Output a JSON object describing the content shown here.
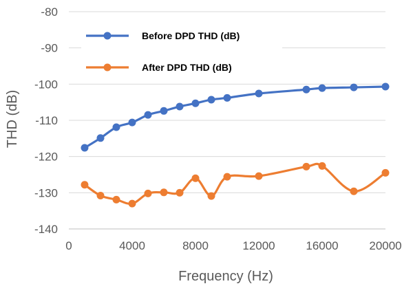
{
  "chart_data": {
    "type": "line",
    "xlabel": "Frequency (Hz)",
    "ylabel": "THD (dB)",
    "xlim": [
      0,
      20000
    ],
    "ylim": [
      -140,
      -80
    ],
    "xticks": [
      0,
      4000,
      8000,
      12000,
      16000,
      20000
    ],
    "yticks": [
      -140,
      -130,
      -120,
      -110,
      -100,
      -90,
      -80
    ],
    "grid": "horizontal",
    "legend_position": "top-left inside",
    "series": [
      {
        "name": "Before DPD THD (dB)",
        "color": "#4472C4",
        "x": [
          1000,
          2000,
          3000,
          4000,
          5000,
          6000,
          7000,
          8000,
          9000,
          10000,
          12000,
          15000,
          16000,
          18000,
          20000
        ],
        "y": [
          -117.6,
          -114.9,
          -111.9,
          -110.6,
          -108.5,
          -107.4,
          -106.2,
          -105.3,
          -104.3,
          -103.8,
          -102.6,
          -101.5,
          -101.1,
          -100.9,
          -100.7
        ]
      },
      {
        "name": "After DPD THD (dB)",
        "color": "#ED7D31",
        "x": [
          1000,
          2000,
          3000,
          4000,
          5000,
          6000,
          7000,
          8000,
          9000,
          10000,
          12000,
          15000,
          16000,
          18000,
          20000
        ],
        "y": [
          -127.8,
          -130.8,
          -131.9,
          -133.0,
          -130.2,
          -129.9,
          -130.0,
          -126.0,
          -130.9,
          -125.6,
          -125.4,
          -122.8,
          -122.6,
          -129.6,
          -124.5
        ]
      }
    ]
  }
}
